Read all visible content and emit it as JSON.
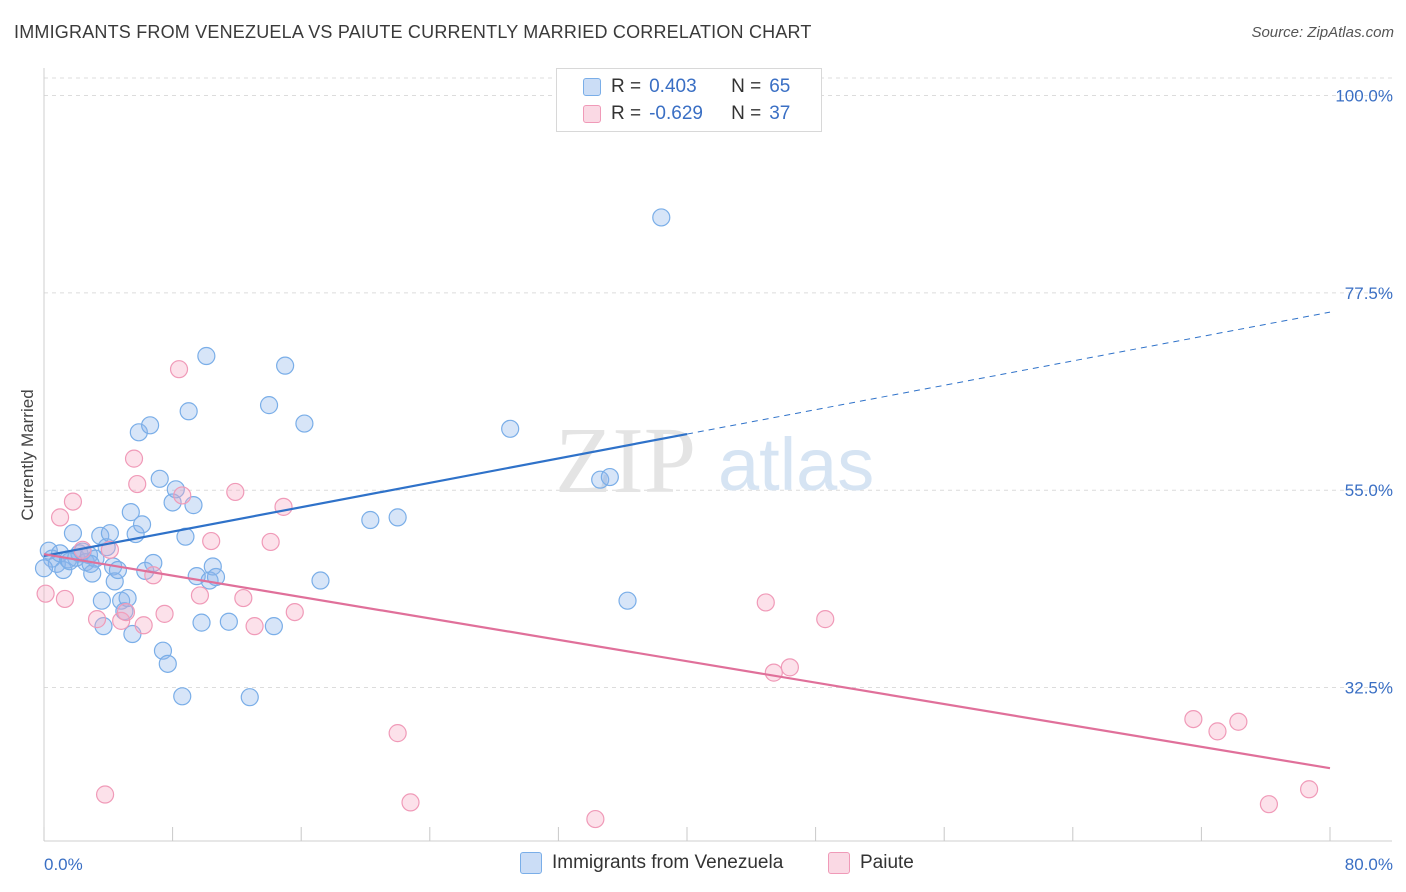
{
  "chart_data": {
    "type": "scatter",
    "title": "IMMIGRANTS FROM VENEZUELA VS PAIUTE CURRENTLY MARRIED CORRELATION CHART",
    "source": "Source: ZipAtlas.com",
    "xlabel": "",
    "ylabel": "Currently Married",
    "xlim": [
      0,
      80
    ],
    "ylim": [
      15,
      102
    ],
    "x_tick_labels": [
      "0.0%",
      "80.0%"
    ],
    "y_ticks": [
      32.5,
      55.0,
      77.5,
      100.0
    ],
    "y_tick_labels": [
      "32.5%",
      "55.0%",
      "77.5%",
      "100.0%"
    ],
    "watermark": "ZIPatlas",
    "legend_stats": [
      {
        "r_label": "R =",
        "r_value": "0.403",
        "n_label": "N =",
        "n_value": "65"
      },
      {
        "r_label": "R =",
        "r_value": "-0.629",
        "n_label": "N =",
        "n_value": "37"
      }
    ],
    "series": [
      {
        "name": "Immigrants from Venezuela",
        "color": "#7aaee8",
        "fill": "rgba(140,180,235,0.35)",
        "line_color": "#2f72c9",
        "trend": {
          "x0": 0,
          "y0": 47.5,
          "x1": 40,
          "y1": 61.4,
          "x_dash_end": 80,
          "y_dash_end": 75.3
        },
        "points": [
          [
            0.3,
            48.1
          ],
          [
            0.5,
            47.2
          ],
          [
            0.8,
            46.6
          ],
          [
            1.0,
            47.8
          ],
          [
            1.2,
            45.9
          ],
          [
            1.5,
            47.1
          ],
          [
            1.8,
            50.1
          ],
          [
            2.0,
            47.3
          ],
          [
            2.2,
            47.8
          ],
          [
            2.4,
            48.0
          ],
          [
            2.6,
            46.8
          ],
          [
            2.8,
            47.6
          ],
          [
            3.0,
            45.5
          ],
          [
            3.2,
            47.2
          ],
          [
            3.5,
            49.8
          ],
          [
            3.6,
            42.4
          ],
          [
            3.7,
            39.5
          ],
          [
            3.9,
            48.5
          ],
          [
            4.1,
            50.1
          ],
          [
            4.3,
            46.3
          ],
          [
            4.4,
            44.6
          ],
          [
            4.6,
            45.9
          ],
          [
            4.8,
            42.4
          ],
          [
            5.0,
            41.2
          ],
          [
            5.2,
            42.7
          ],
          [
            5.4,
            52.5
          ],
          [
            5.5,
            38.6
          ],
          [
            5.7,
            50.0
          ],
          [
            5.9,
            61.6
          ],
          [
            6.1,
            51.1
          ],
          [
            6.3,
            45.8
          ],
          [
            6.6,
            62.4
          ],
          [
            7.2,
            56.3
          ],
          [
            7.4,
            36.7
          ],
          [
            7.7,
            35.2
          ],
          [
            8.0,
            53.6
          ],
          [
            8.2,
            55.1
          ],
          [
            8.6,
            31.5
          ],
          [
            8.8,
            49.7
          ],
          [
            9.0,
            64.0
          ],
          [
            9.3,
            53.3
          ],
          [
            9.5,
            45.2
          ],
          [
            9.8,
            39.9
          ],
          [
            10.1,
            70.3
          ],
          [
            10.3,
            44.7
          ],
          [
            10.5,
            46.3
          ],
          [
            10.7,
            45.1
          ],
          [
            11.5,
            40.0
          ],
          [
            12.8,
            31.4
          ],
          [
            14.0,
            64.7
          ],
          [
            14.3,
            39.5
          ],
          [
            15.0,
            69.2
          ],
          [
            16.2,
            62.6
          ],
          [
            17.2,
            44.7
          ],
          [
            20.3,
            51.6
          ],
          [
            22.0,
            51.9
          ],
          [
            29.0,
            62.0
          ],
          [
            34.6,
            56.2
          ],
          [
            35.2,
            56.5
          ],
          [
            36.3,
            42.4
          ],
          [
            38.4,
            86.1
          ],
          [
            0.0,
            46.1
          ],
          [
            1.6,
            46.9
          ],
          [
            2.9,
            46.6
          ],
          [
            6.8,
            46.7
          ]
        ]
      },
      {
        "name": "Paiute",
        "color": "#f09ab8",
        "fill": "rgba(245,170,195,0.35)",
        "line_color": "#e0709a",
        "trend": {
          "x0": 0,
          "y0": 47.7,
          "x1": 80,
          "y1": 23.3
        },
        "points": [
          [
            0.1,
            43.2
          ],
          [
            1.0,
            51.9
          ],
          [
            1.3,
            42.6
          ],
          [
            1.8,
            53.7
          ],
          [
            2.4,
            48.2
          ],
          [
            3.3,
            40.3
          ],
          [
            3.8,
            20.3
          ],
          [
            4.1,
            48.2
          ],
          [
            4.8,
            40.1
          ],
          [
            5.1,
            41.1
          ],
          [
            5.6,
            58.6
          ],
          [
            5.8,
            55.7
          ],
          [
            6.2,
            39.6
          ],
          [
            6.8,
            45.3
          ],
          [
            7.5,
            40.9
          ],
          [
            8.4,
            68.8
          ],
          [
            8.6,
            54.4
          ],
          [
            9.7,
            43.0
          ],
          [
            10.4,
            49.2
          ],
          [
            11.9,
            54.8
          ],
          [
            12.4,
            42.7
          ],
          [
            13.1,
            39.5
          ],
          [
            14.1,
            49.1
          ],
          [
            14.9,
            53.1
          ],
          [
            15.6,
            41.1
          ],
          [
            22.0,
            27.3
          ],
          [
            22.8,
            19.4
          ],
          [
            34.3,
            17.5
          ],
          [
            44.9,
            42.2
          ],
          [
            45.4,
            34.2
          ],
          [
            46.4,
            34.8
          ],
          [
            48.6,
            40.3
          ],
          [
            71.5,
            28.9
          ],
          [
            73.0,
            27.5
          ],
          [
            74.3,
            28.6
          ],
          [
            76.2,
            19.2
          ],
          [
            78.7,
            20.9
          ]
        ]
      }
    ]
  }
}
